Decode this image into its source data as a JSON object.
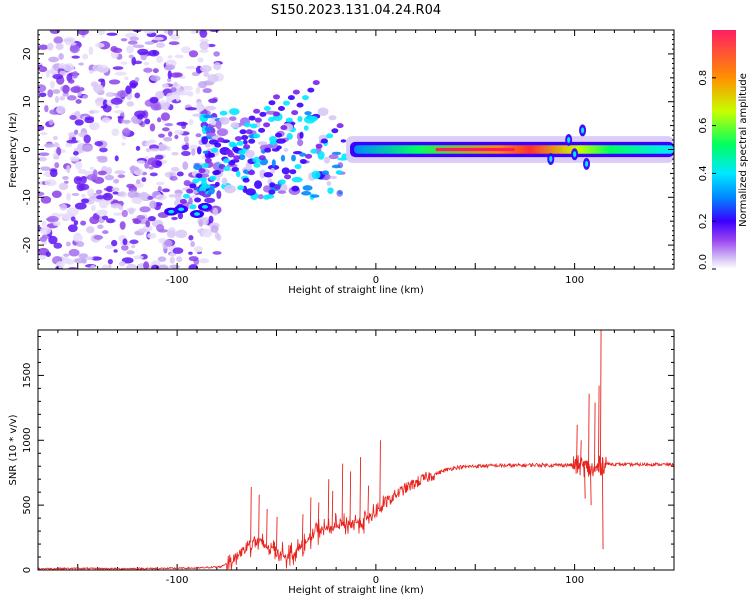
{
  "figure": {
    "title": "S150.2023.131.04.24.R04"
  },
  "chart_data": [
    {
      "type": "heatmap",
      "title": "S150.2023.131.04.24.R04",
      "xlabel": "Height of straight line (km)",
      "ylabel": "Frequency (Hz)",
      "xlim": [
        -170,
        150
      ],
      "ylim": [
        -25,
        25
      ],
      "x_ticks": [
        -100,
        0,
        100
      ],
      "y_ticks": [
        -20,
        -10,
        0,
        10,
        20
      ],
      "colorbar": {
        "label": "Normalized spectral amplitude",
        "range": [
          0.0,
          1.0
        ],
        "ticks": [
          "0.0",
          "0.2",
          "0.4",
          "0.6",
          "0.8"
        ],
        "colormap": [
          "#ffffff",
          "#d8c8f6",
          "#9a46f0",
          "#3a00ff",
          "#0088ff",
          "#00e8ff",
          "#00ff60",
          "#c8ff00",
          "#ff9000",
          "#ff1e64"
        ]
      },
      "features": {
        "noise_region_x": [
          -170,
          -85
        ],
        "transition_region_x": [
          -90,
          -15
        ],
        "main_band_x": [
          -15,
          150
        ],
        "main_band_frequency": 0,
        "strong_peak_x": [
          30,
          70
        ],
        "descending_streaks_start": [
          -100,
          -70
        ],
        "descending_streaks_end": [
          -30,
          -10
        ]
      }
    },
    {
      "type": "line",
      "xlabel": "Height of straight line (km)",
      "ylabel": "SNR (10 * v/v)",
      "xlim": [
        -170,
        150
      ],
      "ylim": [
        0,
        1850
      ],
      "x_ticks": [
        -100,
        0,
        100
      ],
      "y_ticks": [
        0,
        500,
        1000,
        1500
      ],
      "color": "#e8211c",
      "series": [
        {
          "points": [
            [
              -170,
              10
            ],
            [
              -150,
              12
            ],
            [
              -130,
              10
            ],
            [
              -110,
              12
            ],
            [
              -90,
              15
            ],
            [
              -78,
              25
            ],
            [
              -72,
              80
            ],
            [
              -66,
              160
            ],
            [
              -62,
              230
            ],
            [
              -58,
              200
            ],
            [
              -52,
              170
            ],
            [
              -46,
              110
            ],
            [
              -40,
              140
            ],
            [
              -35,
              210
            ],
            [
              -30,
              300
            ],
            [
              -24,
              320
            ],
            [
              -18,
              340
            ],
            [
              -12,
              360
            ],
            [
              -6,
              380
            ],
            [
              0,
              440
            ],
            [
              5,
              520
            ],
            [
              10,
              580
            ],
            [
              15,
              630
            ],
            [
              20,
              670
            ],
            [
              25,
              710
            ],
            [
              30,
              740
            ],
            [
              35,
              770
            ],
            [
              40,
              790
            ],
            [
              50,
              800
            ],
            [
              60,
              805
            ],
            [
              70,
              805
            ],
            [
              80,
              810
            ],
            [
              90,
              808
            ],
            [
              100,
              810
            ],
            [
              104,
              800
            ],
            [
              110,
              760
            ],
            [
              114,
              820
            ],
            [
              120,
              815
            ],
            [
              130,
              812
            ],
            [
              140,
              815
            ],
            [
              150,
              812
            ]
          ]
        }
      ],
      "spikes": [
        [
          -63,
          640
        ],
        [
          -59,
          580
        ],
        [
          -55,
          470
        ],
        [
          -50,
          410
        ],
        [
          -37,
          430
        ],
        [
          -33,
          560
        ],
        [
          -29,
          520
        ],
        [
          -24,
          700
        ],
        [
          -22,
          610
        ],
        [
          -17,
          820
        ],
        [
          -13,
          760
        ],
        [
          -8,
          870
        ],
        [
          -4,
          650
        ],
        [
          2,
          1000
        ],
        [
          101,
          1120
        ],
        [
          103,
          1000
        ],
        [
          107,
          1360
        ],
        [
          110,
          1290
        ],
        [
          112,
          1420
        ],
        [
          113,
          1850
        ],
        [
          114,
          160
        ],
        [
          108,
          500
        ],
        [
          105,
          550
        ]
      ]
    }
  ]
}
